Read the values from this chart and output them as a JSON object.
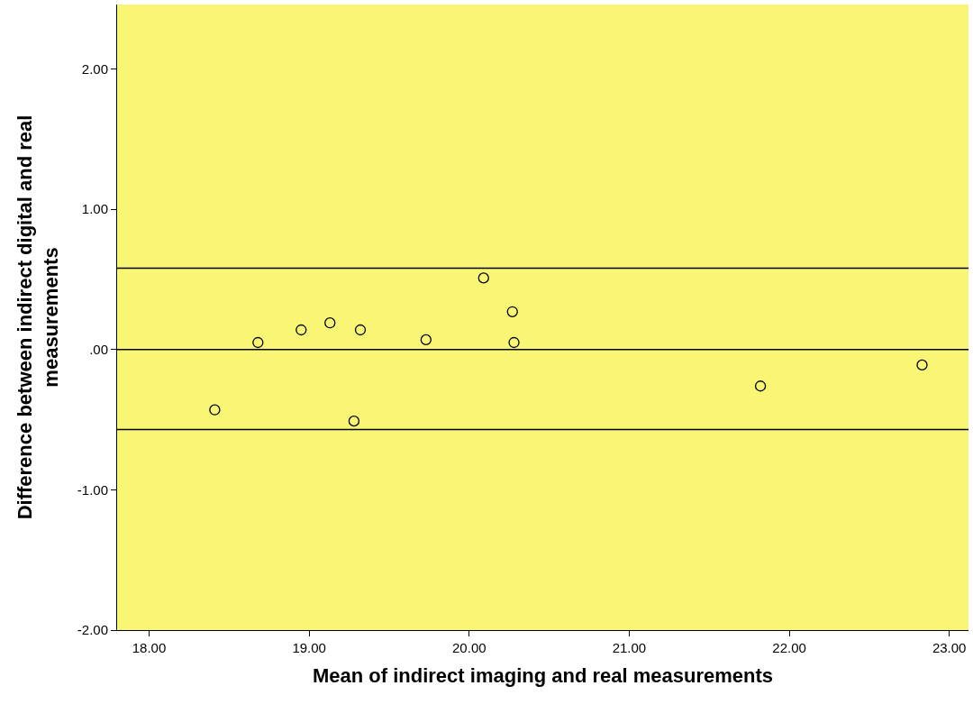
{
  "chart_data": {
    "type": "scatter",
    "xlabel": "Mean of indirect imaging and real measurements",
    "ylabel": "Difference between indirect digital and real\nmeasurements",
    "x": [
      18.41,
      18.68,
      18.95,
      19.13,
      19.32,
      19.28,
      19.73,
      20.09,
      20.27,
      20.28,
      21.82,
      22.83
    ],
    "values": [
      -0.43,
      0.05,
      0.14,
      0.19,
      0.14,
      -0.51,
      0.07,
      0.51,
      0.27,
      0.05,
      -0.26,
      -0.11
    ],
    "color": "#000000",
    "marker": "circle",
    "grid": false,
    "legend": false,
    "xlim": [
      17.8,
      23.12
    ],
    "ylim": [
      -2.0,
      2.46
    ],
    "xticks": [
      {
        "value": 18,
        "label": "18.00"
      },
      {
        "value": 19,
        "label": "19.00"
      },
      {
        "value": 20,
        "label": "20.00"
      },
      {
        "value": 21,
        "label": "21.00"
      },
      {
        "value": 22,
        "label": "22.00"
      },
      {
        "value": 23,
        "label": "23.00"
      }
    ],
    "yticks": [
      {
        "value": -2,
        "label": "-2.00"
      },
      {
        "value": -1,
        "label": "-1.00"
      },
      {
        "value": 0,
        "label": ".00"
      },
      {
        "value": 1,
        "label": "1.00"
      },
      {
        "value": 2,
        "label": "2.00"
      }
    ],
    "ref_lines": [
      {
        "axis": "y",
        "value": 0.58,
        "color": "#000000"
      },
      {
        "axis": "y",
        "value": 0.0,
        "color": "#000000"
      },
      {
        "axis": "y",
        "value": -0.57,
        "color": "#000000"
      }
    ]
  }
}
